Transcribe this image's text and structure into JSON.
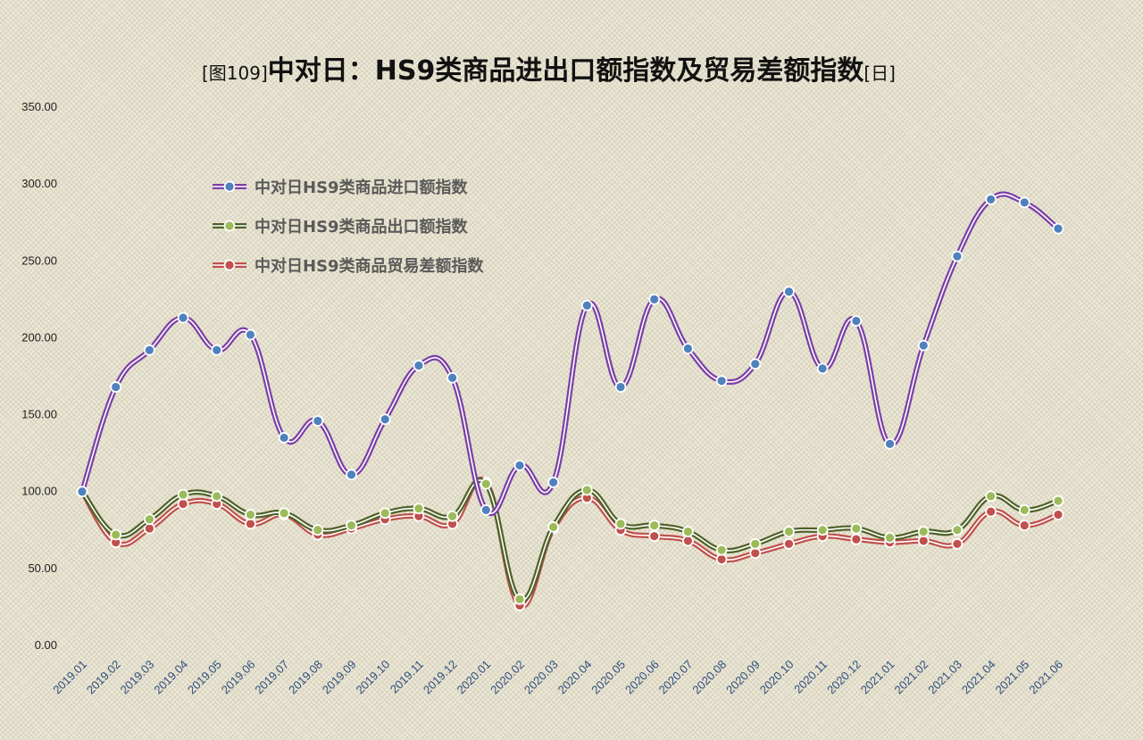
{
  "chart_data": {
    "type": "line",
    "title_prefix": "[图109]",
    "title_main": "中对日：HS9类商品进出口额指数及贸易差额指数",
    "title_suffix": "[日]",
    "xlabel": "",
    "ylabel": "",
    "ylim": [
      0,
      350
    ],
    "yticks": [
      "0.00",
      "50.00",
      "100.00",
      "150.00",
      "200.00",
      "250.00",
      "300.00",
      "350.00"
    ],
    "grid": false,
    "legend_position": "upper-left",
    "categories": [
      "2019.01",
      "2019.02",
      "2019.03",
      "2019.04",
      "2019.05",
      "2019.06",
      "2019.07",
      "2019.08",
      "2019.09",
      "2019.10",
      "2019.11",
      "2019.12",
      "2020.01",
      "2020.02",
      "2020.03",
      "2020.04",
      "2020.05",
      "2020.06",
      "2020.07",
      "2020.08",
      "2020.09",
      "2020.10",
      "2020.11",
      "2020.12",
      "2021.01",
      "2021.02",
      "2021.03",
      "2021.04",
      "2021.05",
      "2021.06"
    ],
    "series": [
      {
        "name": "中对日HS9类商品进口额指数",
        "color": "#7b3fa8",
        "marker": "#4f81bd",
        "values": [
          100,
          168,
          192,
          213,
          192,
          202,
          135,
          146,
          111,
          147,
          182,
          174,
          88,
          117,
          106,
          221,
          168,
          225,
          193,
          172,
          183,
          230,
          180,
          211,
          131,
          195,
          253,
          290,
          288,
          271
        ]
      },
      {
        "name": "中对日HS9类商品出口额指数",
        "color": "#4f6228",
        "marker": "#9bbb59",
        "values": [
          100,
          72,
          82,
          98,
          97,
          85,
          86,
          75,
          78,
          86,
          89,
          84,
          105,
          30,
          77,
          101,
          79,
          78,
          74,
          62,
          66,
          74,
          75,
          76,
          70,
          74,
          75,
          97,
          88,
          94
        ]
      },
      {
        "name": "中对日HS9类商品贸易差额指数",
        "color": "#c0504d",
        "marker": "#c0504d",
        "values": [
          100,
          67,
          76,
          92,
          92,
          79,
          85,
          72,
          76,
          82,
          84,
          79,
          106,
          26,
          76,
          96,
          75,
          71,
          68,
          56,
          60,
          66,
          71,
          69,
          67,
          68,
          66,
          87,
          78,
          85
        ]
      }
    ]
  }
}
